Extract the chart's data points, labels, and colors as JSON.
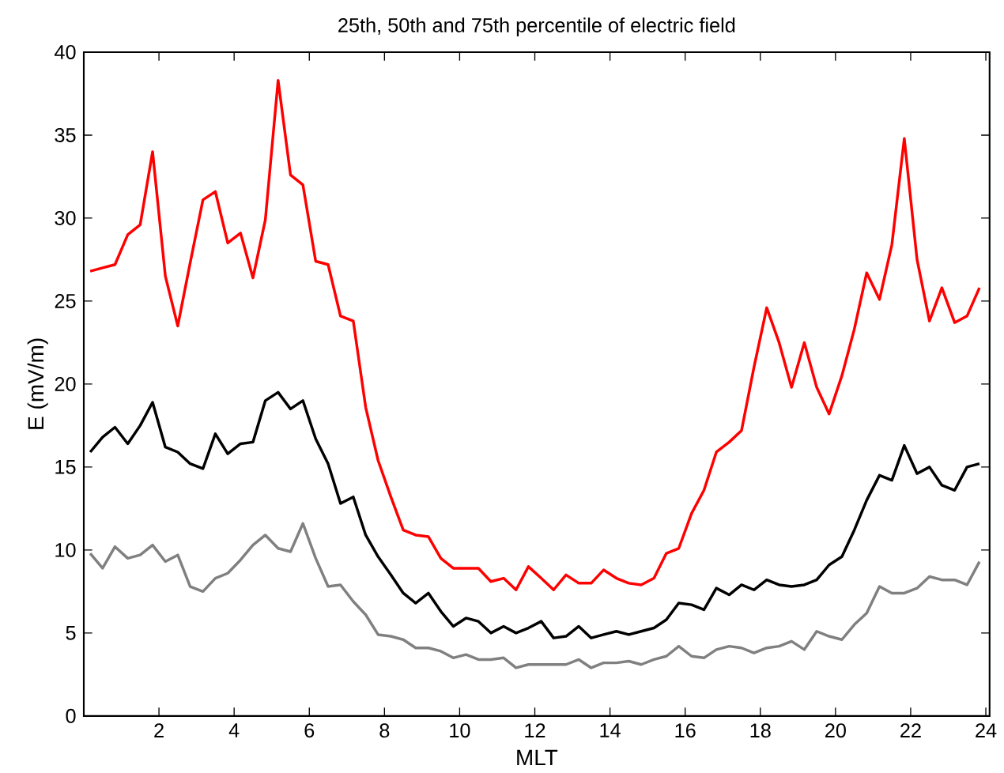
{
  "chart_data": {
    "type": "line",
    "title": "25th, 50th and 75th percentile of electric field",
    "xlabel": "MLT",
    "ylabel": "E (mV/m)",
    "x": [
      0.17,
      0.5,
      0.83,
      1.17,
      1.5,
      1.83,
      2.17,
      2.5,
      2.83,
      3.17,
      3.5,
      3.83,
      4.17,
      4.5,
      4.83,
      5.17,
      5.5,
      5.83,
      6.17,
      6.5,
      6.83,
      7.17,
      7.5,
      7.83,
      8.17,
      8.5,
      8.83,
      9.17,
      9.5,
      9.83,
      10.17,
      10.5,
      10.83,
      11.17,
      11.5,
      11.83,
      12.17,
      12.5,
      12.83,
      13.17,
      13.5,
      13.83,
      14.17,
      14.5,
      14.83,
      15.17,
      15.5,
      15.83,
      16.17,
      16.5,
      16.83,
      17.17,
      17.5,
      17.83,
      18.17,
      18.5,
      18.83,
      19.17,
      19.5,
      19.83,
      20.17,
      20.5,
      20.83,
      21.17,
      21.5,
      21.83,
      22.17,
      22.5,
      22.83,
      23.17,
      23.5,
      23.83
    ],
    "series": [
      {
        "color": "#ff0000",
        "values": [
          26.8,
          27.0,
          27.2,
          29.0,
          29.6,
          34.0,
          26.5,
          23.5,
          27.3,
          31.1,
          31.6,
          28.5,
          29.1,
          26.4,
          29.9,
          38.3,
          32.6,
          32.0,
          27.4,
          27.2,
          24.1,
          23.8,
          18.6,
          15.4,
          13.2,
          11.2,
          10.9,
          10.8,
          9.5,
          8.9,
          8.9,
          8.9,
          8.1,
          8.3,
          7.6,
          9.0,
          8.3,
          7.6,
          8.5,
          8.0,
          8.0,
          8.8,
          8.3,
          8.0,
          7.9,
          8.3,
          9.8,
          10.1,
          12.2,
          13.6,
          15.9,
          16.5,
          17.2,
          21.0,
          24.6,
          22.5,
          19.8,
          22.5,
          19.8,
          18.2,
          20.5,
          23.3,
          26.7,
          25.1,
          28.4,
          34.8,
          27.5,
          23.8,
          25.8,
          23.7,
          24.1,
          25.8
        ]
      },
      {
        "color": "#000000",
        "values": [
          15.9,
          16.8,
          17.4,
          16.4,
          17.5,
          18.9,
          16.2,
          15.9,
          15.2,
          14.9,
          17.0,
          15.8,
          16.4,
          16.5,
          19.0,
          19.5,
          18.5,
          19.0,
          16.7,
          15.2,
          12.8,
          13.2,
          10.9,
          9.6,
          8.5,
          7.4,
          6.8,
          7.4,
          6.3,
          5.4,
          5.9,
          5.7,
          5.0,
          5.4,
          5.0,
          5.3,
          5.7,
          4.7,
          4.8,
          5.4,
          4.7,
          4.9,
          5.1,
          4.9,
          5.1,
          5.3,
          5.8,
          6.8,
          6.7,
          6.4,
          7.7,
          7.3,
          7.9,
          7.6,
          8.2,
          7.9,
          7.8,
          7.9,
          8.2,
          9.1,
          9.6,
          11.2,
          13.0,
          14.5,
          14.2,
          16.3,
          14.6,
          15.0,
          13.9,
          13.6,
          15.0,
          15.2
        ]
      },
      {
        "color": "#808080",
        "values": [
          9.8,
          8.9,
          10.2,
          9.5,
          9.7,
          10.3,
          9.3,
          9.7,
          7.8,
          7.5,
          8.3,
          8.6,
          9.4,
          10.3,
          10.9,
          10.1,
          9.9,
          11.6,
          9.5,
          7.8,
          7.9,
          6.9,
          6.1,
          4.9,
          4.8,
          4.6,
          4.1,
          4.1,
          3.9,
          3.5,
          3.7,
          3.4,
          3.4,
          3.5,
          2.9,
          3.1,
          3.1,
          3.1,
          3.1,
          3.4,
          2.9,
          3.2,
          3.2,
          3.3,
          3.1,
          3.4,
          3.6,
          4.2,
          3.6,
          3.5,
          4.0,
          4.2,
          4.1,
          3.8,
          4.1,
          4.2,
          4.5,
          4.0,
          5.1,
          4.8,
          4.6,
          5.5,
          6.2,
          7.8,
          7.4,
          7.4,
          7.7,
          8.4,
          8.2,
          8.2,
          7.9,
          9.3
        ]
      }
    ],
    "xlim": [
      0,
      24.1
    ],
    "ylim": [
      0,
      40
    ],
    "xticks": [
      2,
      4,
      6,
      8,
      10,
      12,
      14,
      16,
      18,
      20,
      22,
      24
    ],
    "yticks": [
      0,
      5,
      10,
      15,
      20,
      25,
      30,
      35,
      40
    ],
    "marker": "none",
    "line_style": "solid"
  }
}
